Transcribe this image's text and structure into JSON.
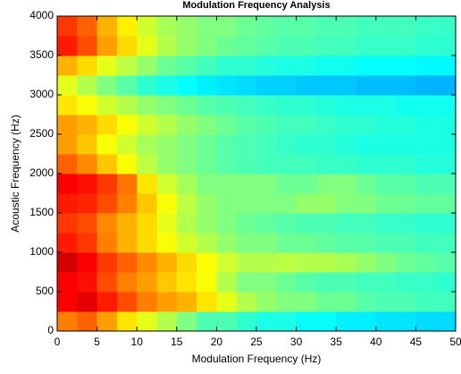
{
  "chart_data": {
    "type": "heatmap",
    "title": "Modulation Frequency Analysis",
    "x_label": "Modulation Frequency (Hz)",
    "y_label": "Acoustic Frequency (Hz)",
    "colormap": "jet",
    "zlim": [
      0,
      1
    ],
    "xlim": [
      0,
      50
    ],
    "ylim": [
      0,
      4000
    ],
    "xticks": [
      0,
      5,
      10,
      15,
      20,
      25,
      30,
      35,
      40,
      45,
      50
    ],
    "yticks": [
      0,
      500,
      1000,
      1500,
      2000,
      2500,
      3000,
      3500,
      4000
    ],
    "x": [
      1.25,
      3.75,
      6.25,
      8.75,
      11.25,
      13.75,
      16.25,
      18.75,
      21.25,
      23.75,
      26.25,
      28.75,
      31.25,
      33.75,
      36.25,
      38.75,
      41.25,
      43.75,
      46.25,
      48.75
    ],
    "y": [
      125,
      375,
      625,
      875,
      1125,
      1375,
      1625,
      1875,
      2125,
      2375,
      2625,
      2875,
      3125,
      3375,
      3625,
      3875
    ],
    "z": [
      [
        0.75,
        0.78,
        0.72,
        0.65,
        0.6,
        0.55,
        0.5,
        0.45,
        0.45,
        0.42,
        0.4,
        0.4,
        0.38,
        0.38,
        0.36,
        0.36,
        0.35,
        0.35,
        0.34,
        0.34
      ],
      [
        0.88,
        0.9,
        0.85,
        0.8,
        0.75,
        0.72,
        0.7,
        0.65,
        0.6,
        0.55,
        0.52,
        0.5,
        0.5,
        0.48,
        0.48,
        0.46,
        0.45,
        0.45,
        0.44,
        0.44
      ],
      [
        0.88,
        0.86,
        0.8,
        0.75,
        0.72,
        0.68,
        0.65,
        0.62,
        0.55,
        0.5,
        0.5,
        0.48,
        0.46,
        0.45,
        0.45,
        0.44,
        0.44,
        0.43,
        0.43,
        0.42
      ],
      [
        0.92,
        0.88,
        0.82,
        0.78,
        0.74,
        0.7,
        0.66,
        0.62,
        0.58,
        0.55,
        0.55,
        0.56,
        0.55,
        0.55,
        0.54,
        0.52,
        0.5,
        0.48,
        0.47,
        0.46
      ],
      [
        0.85,
        0.82,
        0.75,
        0.7,
        0.66,
        0.62,
        0.58,
        0.55,
        0.52,
        0.5,
        0.5,
        0.48,
        0.48,
        0.47,
        0.46,
        0.46,
        0.45,
        0.45,
        0.44,
        0.44
      ],
      [
        0.82,
        0.8,
        0.74,
        0.7,
        0.66,
        0.6,
        0.55,
        0.52,
        0.5,
        0.48,
        0.47,
        0.46,
        0.45,
        0.45,
        0.44,
        0.44,
        0.43,
        0.43,
        0.42,
        0.42
      ],
      [
        0.85,
        0.84,
        0.8,
        0.75,
        0.68,
        0.62,
        0.56,
        0.52,
        0.5,
        0.5,
        0.5,
        0.5,
        0.52,
        0.52,
        0.5,
        0.5,
        0.48,
        0.48,
        0.47,
        0.47
      ],
      [
        0.88,
        0.86,
        0.82,
        0.76,
        0.65,
        0.58,
        0.54,
        0.5,
        0.5,
        0.5,
        0.5,
        0.48,
        0.48,
        0.5,
        0.5,
        0.48,
        0.46,
        0.46,
        0.45,
        0.45
      ],
      [
        0.78,
        0.74,
        0.68,
        0.62,
        0.56,
        0.52,
        0.5,
        0.48,
        0.46,
        0.45,
        0.44,
        0.44,
        0.44,
        0.43,
        0.43,
        0.42,
        0.42,
        0.42,
        0.41,
        0.41
      ],
      [
        0.72,
        0.68,
        0.62,
        0.58,
        0.54,
        0.52,
        0.5,
        0.48,
        0.46,
        0.45,
        0.44,
        0.43,
        0.42,
        0.42,
        0.41,
        0.4,
        0.4,
        0.4,
        0.4,
        0.4
      ],
      [
        0.72,
        0.7,
        0.66,
        0.62,
        0.58,
        0.55,
        0.52,
        0.5,
        0.48,
        0.46,
        0.45,
        0.44,
        0.44,
        0.43,
        0.42,
        0.42,
        0.41,
        0.41,
        0.4,
        0.4
      ],
      [
        0.65,
        0.62,
        0.58,
        0.55,
        0.52,
        0.5,
        0.48,
        0.46,
        0.45,
        0.44,
        0.43,
        0.42,
        0.42,
        0.41,
        0.4,
        0.4,
        0.4,
        0.39,
        0.39,
        0.39
      ],
      [
        0.6,
        0.55,
        0.5,
        0.46,
        0.42,
        0.4,
        0.38,
        0.36,
        0.35,
        0.34,
        0.33,
        0.33,
        0.32,
        0.32,
        0.32,
        0.31,
        0.31,
        0.31,
        0.3,
        0.3
      ],
      [
        0.7,
        0.66,
        0.6,
        0.56,
        0.52,
        0.48,
        0.46,
        0.44,
        0.42,
        0.42,
        0.41,
        0.4,
        0.4,
        0.39,
        0.39,
        0.38,
        0.38,
        0.38,
        0.37,
        0.37
      ],
      [
        0.85,
        0.8,
        0.72,
        0.66,
        0.6,
        0.55,
        0.52,
        0.5,
        0.48,
        0.47,
        0.46,
        0.45,
        0.45,
        0.44,
        0.44,
        0.43,
        0.43,
        0.43,
        0.42,
        0.42
      ],
      [
        0.82,
        0.78,
        0.7,
        0.64,
        0.58,
        0.54,
        0.52,
        0.5,
        0.5,
        0.48,
        0.47,
        0.46,
        0.46,
        0.45,
        0.45,
        0.44,
        0.44,
        0.44,
        0.43,
        0.43
      ]
    ]
  }
}
